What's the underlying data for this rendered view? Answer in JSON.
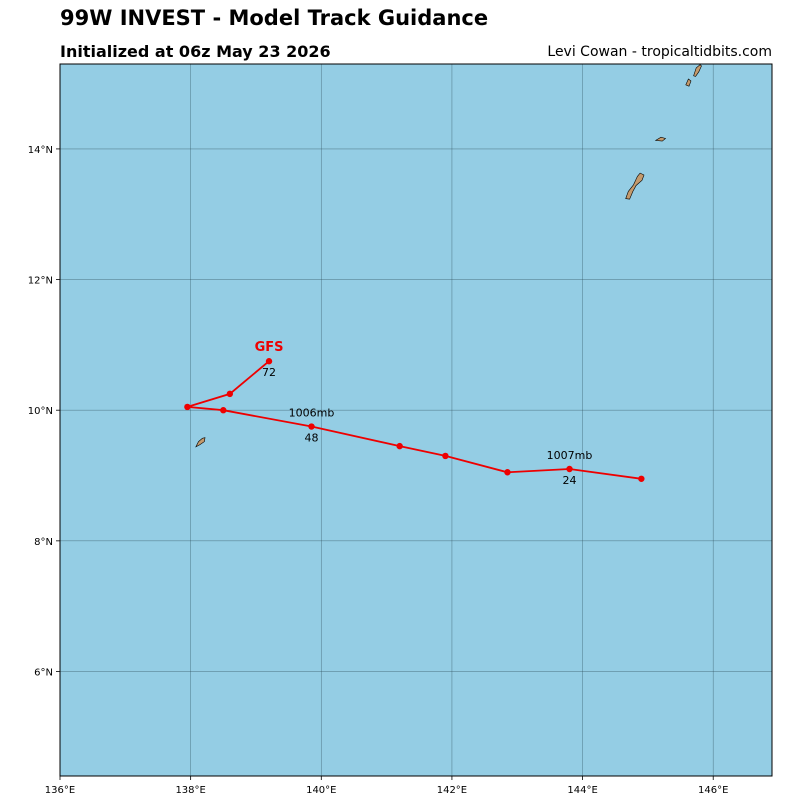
{
  "header": {
    "title": "99W INVEST - Model Track Guidance",
    "subtitle": "Initialized at 06z May 23 2026",
    "credit": "Levi Cowan - tropicaltidbits.com"
  },
  "colors": {
    "ocean": "#94cde4",
    "land": "#c49a6c",
    "track": "#ee0000"
  },
  "map": {
    "lon_range": [
      136.0,
      146.9
    ],
    "lat_range": [
      4.4,
      15.3
    ],
    "lon_ticks": [
      {
        "value": 136,
        "label": "136°E"
      },
      {
        "value": 138,
        "label": "138°E"
      },
      {
        "value": 140,
        "label": "140°E"
      },
      {
        "value": 142,
        "label": "142°E"
      },
      {
        "value": 144,
        "label": "144°E"
      },
      {
        "value": 146,
        "label": "146°E"
      }
    ],
    "lat_ticks": [
      {
        "value": 6,
        "label": "6°N"
      },
      {
        "value": 8,
        "label": "8°N"
      },
      {
        "value": 10,
        "label": "10°N"
      },
      {
        "value": 12,
        "label": "12°N"
      },
      {
        "value": 14,
        "label": "14°N"
      }
    ],
    "grid": true,
    "islands": [
      {
        "name": "yap-island",
        "points": [
          [
            138.08,
            9.44
          ],
          [
            138.12,
            9.52
          ],
          [
            138.18,
            9.57
          ],
          [
            138.22,
            9.58
          ],
          [
            138.21,
            9.52
          ],
          [
            138.14,
            9.47
          ]
        ]
      },
      {
        "name": "guam-island",
        "points": [
          [
            144.66,
            13.24
          ],
          [
            144.7,
            13.35
          ],
          [
            144.78,
            13.45
          ],
          [
            144.84,
            13.58
          ],
          [
            144.88,
            13.63
          ],
          [
            144.94,
            13.6
          ],
          [
            144.91,
            13.52
          ],
          [
            144.82,
            13.44
          ],
          [
            144.77,
            13.35
          ],
          [
            144.72,
            13.23
          ]
        ]
      },
      {
        "name": "rota-island",
        "points": [
          [
            145.12,
            14.13
          ],
          [
            145.2,
            14.18
          ],
          [
            145.27,
            14.16
          ],
          [
            145.22,
            14.12
          ]
        ]
      },
      {
        "name": "tinian-island",
        "points": [
          [
            145.58,
            14.98
          ],
          [
            145.62,
            15.07
          ],
          [
            145.66,
            15.04
          ],
          [
            145.63,
            14.96
          ]
        ]
      },
      {
        "name": "saipan-island",
        "points": [
          [
            145.7,
            15.12
          ],
          [
            145.74,
            15.24
          ],
          [
            145.8,
            15.29
          ],
          [
            145.82,
            15.27
          ],
          [
            145.78,
            15.18
          ],
          [
            145.73,
            15.11
          ]
        ]
      }
    ]
  },
  "chart_data": {
    "type": "line",
    "series": [
      {
        "name": "GFS",
        "points": [
          {
            "lon": 144.9,
            "lat": 8.95
          },
          {
            "lon": 143.8,
            "lat": 9.1,
            "hour": "24",
            "pressure": "1007mb"
          },
          {
            "lon": 142.85,
            "lat": 9.05
          },
          {
            "lon": 141.9,
            "lat": 9.3
          },
          {
            "lon": 141.2,
            "lat": 9.45
          },
          {
            "lon": 139.85,
            "lat": 9.75,
            "hour": "48",
            "pressure": "1006mb"
          },
          {
            "lon": 138.5,
            "lat": 10.0
          },
          {
            "lon": 137.95,
            "lat": 10.05
          },
          {
            "lon": 138.6,
            "lat": 10.25
          },
          {
            "lon": 139.2,
            "lat": 10.75,
            "hour": "72"
          }
        ]
      }
    ]
  }
}
